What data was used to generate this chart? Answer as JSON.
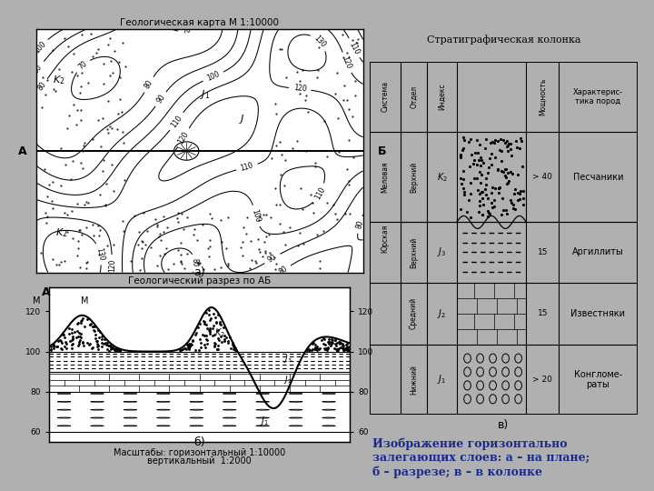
{
  "bg_color": "#b0b0b0",
  "map_title": "Геологическая карта М 1:10000",
  "cross_title": "Геологический разрез по АБ",
  "column_title": "Стратиграфическая колонка",
  "scale_text1": "Масштабы: горизонтальный 1:10000",
  "scale_text2": "вертикальный  1:2000",
  "label_a": "а)",
  "label_b": "б)",
  "label_v": "в)",
  "caption_line1": "Изображение горизонтально",
  "caption_line2": "залегающих слоев: а – на плане;",
  "caption_line3": "б – разрезе; в – в колонке",
  "caption_color": "#1a2a8a"
}
